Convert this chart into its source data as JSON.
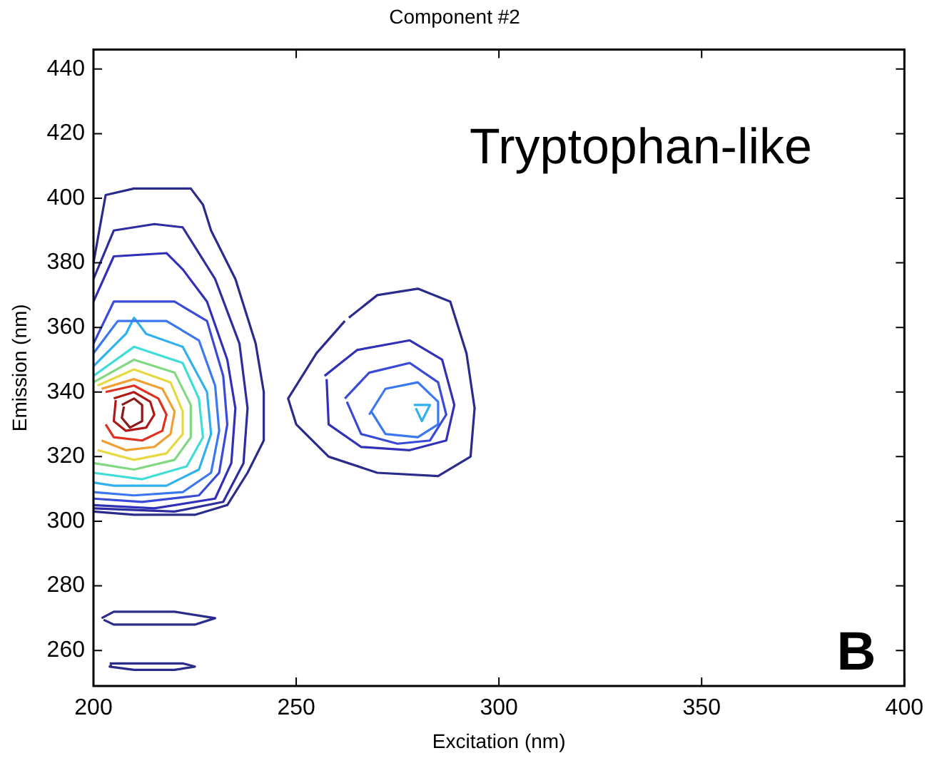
{
  "chart_data": {
    "type": "line",
    "title": "Component #2",
    "xlabel": "Excitation (nm)",
    "ylabel": "Emission (nm)",
    "annotations": [
      "Tryptophan-like",
      "B"
    ],
    "xlim": [
      200,
      400
    ],
    "ylim": [
      249,
      446
    ],
    "xticks": [
      200,
      250,
      300,
      350,
      400
    ],
    "yticks": [
      260,
      280,
      300,
      320,
      340,
      360,
      380,
      400,
      420,
      440
    ],
    "grid": false,
    "legend": false,
    "marker": "none",
    "line_style": "solid",
    "series": [
      {
        "color": "#2b2b8c",
        "x": [
          200,
          203,
          210,
          224,
          227,
          229,
          235,
          240,
          242,
          242,
          238,
          233,
          225,
          210,
          200
        ],
        "values": [
          380,
          401,
          403,
          403,
          398,
          390,
          375,
          355,
          340,
          325,
          315,
          305,
          302,
          302,
          303
        ]
      },
      {
        "color": "#2d2da0",
        "x": [
          200,
          205,
          215,
          222,
          225,
          230,
          236,
          238,
          237,
          232,
          220,
          200
        ],
        "values": [
          375,
          390,
          392,
          391,
          385,
          375,
          355,
          335,
          318,
          306,
          303,
          304
        ]
      },
      {
        "color": "#3030b8",
        "x": [
          200,
          205,
          218,
          222,
          228,
          233,
          235,
          234,
          230,
          215,
          200
        ],
        "values": [
          368,
          382,
          383,
          378,
          368,
          350,
          335,
          318,
          307,
          304,
          305
        ]
      },
      {
        "color": "#3a4ad8",
        "x": [
          200,
          205,
          220,
          228,
          232,
          233,
          231,
          226,
          212,
          200
        ],
        "values": [
          355,
          368,
          368,
          362,
          345,
          330,
          315,
          308,
          306,
          307
        ]
      },
      {
        "color": "#3b78f0",
        "x": [
          200,
          206,
          218,
          226,
          230,
          231,
          229,
          222,
          210,
          200
        ],
        "values": [
          352,
          362,
          362,
          356,
          342,
          328,
          315,
          309,
          308,
          309
        ]
      },
      {
        "color": "#30b0f0",
        "x": [
          200,
          208,
          210,
          213,
          222,
          228,
          229,
          226,
          218,
          205,
          200
        ],
        "values": [
          348,
          358,
          363,
          358,
          354,
          340,
          327,
          316,
          311,
          311,
          312
        ]
      },
      {
        "color": "#40dcd8",
        "x": [
          200,
          210,
          222,
          226,
          227,
          223,
          212,
          200
        ],
        "values": [
          345,
          354,
          349,
          338,
          326,
          317,
          313,
          315
        ]
      },
      {
        "color": "#80d880",
        "x": [
          200,
          210,
          220,
          224,
          224,
          220,
          210,
          200
        ],
        "values": [
          343,
          350,
          346,
          336,
          326,
          319,
          316,
          318
        ]
      },
      {
        "color": "#e6d840",
        "x": [
          201,
          210,
          219,
          222,
          222,
          218,
          210,
          201
        ],
        "values": [
          342,
          347,
          343,
          334,
          327,
          321,
          319,
          322
        ]
      },
      {
        "color": "#f0a030",
        "x": [
          202,
          210,
          217,
          220,
          219,
          215,
          208,
          202
        ],
        "values": [
          341,
          344,
          341,
          334,
          327,
          323,
          322,
          325
        ]
      },
      {
        "color": "#e03020",
        "x": [
          203,
          210,
          216,
          218,
          217,
          212,
          205,
          203
        ],
        "values": [
          340,
          342,
          338,
          333,
          328,
          325,
          326,
          330
        ]
      },
      {
        "color": "#b01818",
        "x": [
          205,
          210,
          214,
          215,
          213,
          208,
          205,
          205.5
        ],
        "values": [
          338,
          340,
          337,
          333,
          329,
          328,
          331,
          337.5
        ]
      },
      {
        "color": "#8b1a1a",
        "x": [
          207,
          210,
          212,
          212,
          209,
          207,
          207.5
        ],
        "values": [
          336,
          338,
          336,
          331,
          329,
          332,
          335.5
        ]
      },
      {
        "color": "#2b2b8c",
        "x": [
          263,
          270,
          280,
          288,
          292,
          294,
          293,
          285,
          270,
          258,
          250,
          248,
          255,
          262
        ],
        "values": [
          363,
          370,
          372,
          368,
          352,
          335,
          320,
          314,
          315,
          320,
          330,
          338,
          352,
          362
        ]
      },
      {
        "color": "#3030b8",
        "x": [
          257,
          265,
          278,
          286,
          289,
          287,
          278,
          266,
          258,
          257.5
        ],
        "values": [
          345,
          353,
          356,
          350,
          336,
          325,
          322,
          323,
          330,
          344
        ]
      },
      {
        "color": "#3a4ad8",
        "x": [
          262,
          268,
          278,
          285,
          287,
          283,
          275,
          266,
          262.5
        ],
        "values": [
          338,
          346,
          349,
          343,
          333,
          325,
          324,
          327,
          337
        ]
      },
      {
        "color": "#3b78f0",
        "x": [
          268,
          272,
          280,
          285,
          285,
          280,
          272,
          268.5
        ],
        "values": [
          333,
          341,
          343,
          337,
          330,
          326,
          327,
          334
        ]
      },
      {
        "color": "#30b0f0",
        "x": [
          279,
          283,
          281,
          279.5
        ],
        "values": [
          336,
          336,
          331,
          335
        ]
      },
      {
        "color": "#2b2b8c",
        "x": [
          202,
          205,
          220,
          230,
          225,
          205,
          202.5
        ],
        "values": [
          270,
          272,
          272,
          270,
          268,
          268,
          269.5
        ]
      },
      {
        "color": "#2b2b8c",
        "x": [
          204,
          210,
          222,
          225,
          220,
          210,
          204,
          204.5
        ],
        "values": [
          256,
          256,
          256,
          255,
          254,
          254,
          255,
          255.5
        ]
      }
    ]
  }
}
